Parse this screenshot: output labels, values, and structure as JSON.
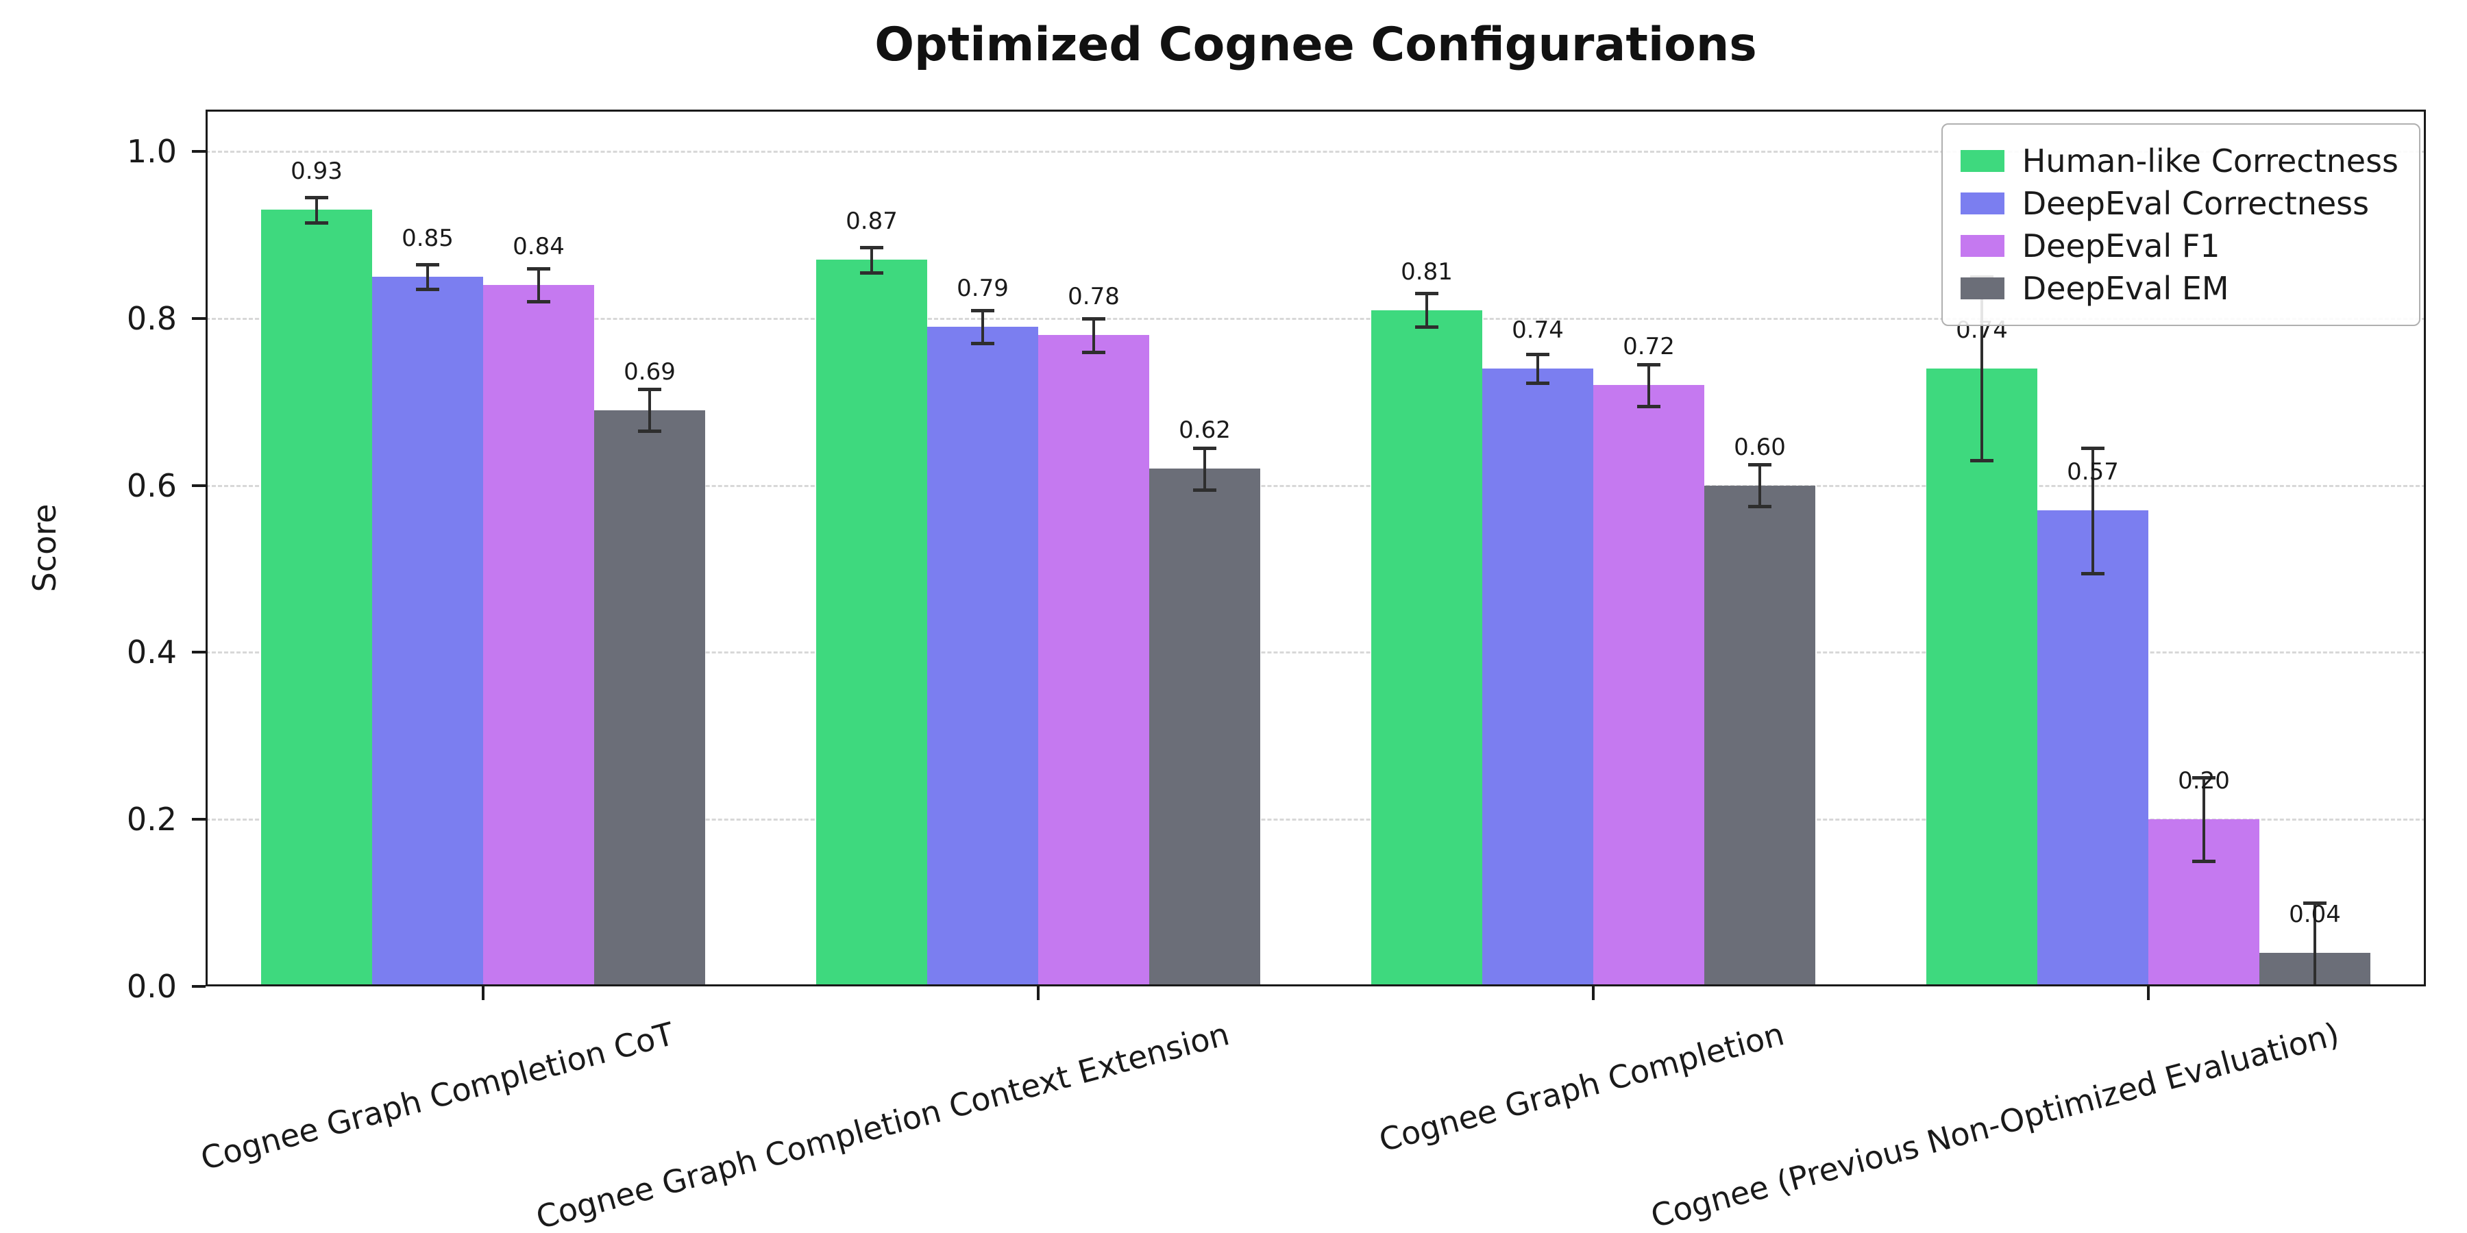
{
  "chart_data": {
    "type": "bar",
    "title": "Optimized Cognee Configurations",
    "xlabel": "",
    "ylabel": "Score",
    "ylim": [
      0,
      1.05
    ],
    "yticks": [
      0,
      0.2,
      0.4,
      0.6,
      0.8,
      1.0
    ],
    "ytick_labels": [
      "0.0",
      "0.2",
      "0.4",
      "0.6",
      "0.8",
      "1.0"
    ],
    "grid": "horizontal-dashed",
    "legend_position": "upper-right",
    "error_bar_color": "#2e2e2e",
    "categories": [
      "Cognee Graph Completion CoT",
      "Cognee Graph Completion Context Extension",
      "Cognee Graph Completion",
      "Cognee (Previous Non-Optimized Evaluation)"
    ],
    "series": [
      {
        "name": "Human-like Correctness",
        "color": "#3ed97e",
        "values": [
          0.93,
          0.87,
          0.81,
          0.74
        ],
        "errors": [
          0.015,
          0.015,
          0.02,
          0.11
        ],
        "bar_labels": [
          "0.93",
          "0.87",
          "0.81",
          "0.74"
        ]
      },
      {
        "name": "DeepEval Correctness",
        "color": "#7b7ef0",
        "values": [
          0.85,
          0.79,
          0.74,
          0.57
        ],
        "errors": [
          0.015,
          0.02,
          0.017,
          0.075
        ],
        "bar_labels": [
          "0.85",
          "0.79",
          "0.74",
          "0.57"
        ]
      },
      {
        "name": "DeepEval F1",
        "color": "#c579f0",
        "values": [
          0.84,
          0.78,
          0.72,
          0.2
        ],
        "errors": [
          0.02,
          0.02,
          0.025,
          0.05
        ],
        "bar_labels": [
          "0.84",
          "0.78",
          "0.72",
          "0.20"
        ]
      },
      {
        "name": "DeepEval EM",
        "color": "#6b6e78",
        "values": [
          0.69,
          0.62,
          0.6,
          0.04
        ],
        "errors": [
          0.025,
          0.025,
          0.025,
          0.06
        ],
        "bar_labels": [
          "0.69",
          "0.62",
          "0.60",
          "0.04"
        ]
      }
    ]
  }
}
